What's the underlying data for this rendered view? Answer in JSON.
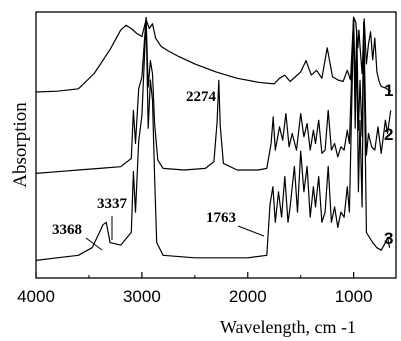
{
  "chart_data": {
    "type": "line",
    "ylabel": "Absorption",
    "xlabel": "Wavelength, cm -1",
    "xlim": [
      4000,
      600
    ],
    "x_reversed": true,
    "x_ticks": [
      4000,
      3000,
      2000,
      1000
    ],
    "x_tick_labels": [
      "4000",
      "3000",
      "2000",
      "1000"
    ],
    "grid": false,
    "legend": "none",
    "series": [
      {
        "name": "1",
        "points": [
          [
            4000,
            0.05
          ],
          [
            3800,
            0.06
          ],
          [
            3600,
            0.09
          ],
          [
            3450,
            0.28
          ],
          [
            3300,
            0.58
          ],
          [
            3200,
            0.82
          ],
          [
            3150,
            0.88
          ],
          [
            3100,
            0.84
          ],
          [
            3050,
            0.78
          ],
          [
            3000,
            0.74
          ],
          [
            2960,
            0.95
          ],
          [
            2930,
            0.84
          ],
          [
            2900,
            0.9
          ],
          [
            2870,
            0.72
          ],
          [
            2820,
            0.62
          ],
          [
            2750,
            0.56
          ],
          [
            2650,
            0.49
          ],
          [
            2500,
            0.4
          ],
          [
            2300,
            0.3
          ],
          [
            2100,
            0.22
          ],
          [
            1900,
            0.17
          ],
          [
            1750,
            0.15
          ],
          [
            1700,
            0.22
          ],
          [
            1650,
            0.26
          ],
          [
            1600,
            0.18
          ],
          [
            1500,
            0.3
          ],
          [
            1450,
            0.44
          ],
          [
            1400,
            0.26
          ],
          [
            1350,
            0.32
          ],
          [
            1300,
            0.22
          ],
          [
            1250,
            0.6
          ],
          [
            1200,
            0.24
          ],
          [
            1150,
            0.2
          ],
          [
            1100,
            0.18
          ],
          [
            1060,
            0.32
          ],
          [
            1030,
            0.2
          ],
          [
            1000,
            0.98
          ],
          [
            980,
            0.92
          ],
          [
            960,
            0.6
          ],
          [
            950,
            0.82
          ],
          [
            940,
            0.62
          ],
          [
            920,
            0.28
          ],
          [
            900,
            0.96
          ],
          [
            880,
            0.4
          ],
          [
            860,
            0.65
          ],
          [
            840,
            0.8
          ],
          [
            820,
            0.45
          ],
          [
            800,
            0.72
          ],
          [
            780,
            0.3
          ],
          [
            760,
            0.18
          ],
          [
            740,
            0.12
          ],
          [
            700,
            0.1
          ],
          [
            650,
            0.06
          ]
        ]
      },
      {
        "name": "2",
        "points": [
          [
            4000,
            0.04
          ],
          [
            3800,
            0.05
          ],
          [
            3600,
            0.06
          ],
          [
            3400,
            0.07
          ],
          [
            3200,
            0.08
          ],
          [
            3100,
            0.13
          ],
          [
            3080,
            0.42
          ],
          [
            3060,
            0.22
          ],
          [
            3030,
            0.55
          ],
          [
            3000,
            0.62
          ],
          [
            2960,
            0.98
          ],
          [
            2940,
            0.56
          ],
          [
            2920,
            0.72
          ],
          [
            2900,
            0.64
          ],
          [
            2880,
            0.34
          ],
          [
            2850,
            0.12
          ],
          [
            2800,
            0.07
          ],
          [
            2600,
            0.06
          ],
          [
            2400,
            0.07
          ],
          [
            2320,
            0.11
          ],
          [
            2290,
            0.35
          ],
          [
            2274,
            0.6
          ],
          [
            2260,
            0.33
          ],
          [
            2230,
            0.1
          ],
          [
            2100,
            0.06
          ],
          [
            1900,
            0.06
          ],
          [
            1820,
            0.07
          ],
          [
            1780,
            0.22
          ],
          [
            1760,
            0.38
          ],
          [
            1740,
            0.18
          ],
          [
            1700,
            0.32
          ],
          [
            1670,
            0.24
          ],
          [
            1640,
            0.4
          ],
          [
            1610,
            0.2
          ],
          [
            1580,
            0.28
          ],
          [
            1540,
            0.18
          ],
          [
            1500,
            0.4
          ],
          [
            1470,
            0.26
          ],
          [
            1440,
            0.34
          ],
          [
            1410,
            0.18
          ],
          [
            1380,
            0.3
          ],
          [
            1360,
            0.22
          ],
          [
            1330,
            0.36
          ],
          [
            1300,
            0.16
          ],
          [
            1270,
            0.18
          ],
          [
            1240,
            0.42
          ],
          [
            1210,
            0.18
          ],
          [
            1180,
            0.22
          ],
          [
            1150,
            0.14
          ],
          [
            1120,
            0.2
          ],
          [
            1090,
            0.18
          ],
          [
            1060,
            0.3
          ],
          [
            1040,
            0.22
          ],
          [
            1000,
            0.98
          ],
          [
            985,
            0.55
          ],
          [
            970,
            0.9
          ],
          [
            955,
            0.3
          ],
          [
            940,
            0.6
          ],
          [
            920,
            0.26
          ],
          [
            905,
            0.95
          ],
          [
            880,
            0.15
          ],
          [
            860,
            0.28
          ],
          [
            830,
            0.2
          ],
          [
            800,
            0.18
          ],
          [
            770,
            0.32
          ],
          [
            740,
            0.16
          ],
          [
            700,
            0.36
          ],
          [
            680,
            0.28
          ],
          [
            650,
            0.42
          ]
        ]
      },
      {
        "name": "3",
        "points": [
          [
            4000,
            0.03
          ],
          [
            3800,
            0.04
          ],
          [
            3600,
            0.05
          ],
          [
            3470,
            0.08
          ],
          [
            3400,
            0.14
          ],
          [
            3368,
            0.17
          ],
          [
            3337,
            0.18
          ],
          [
            3300,
            0.1
          ],
          [
            3200,
            0.09
          ],
          [
            3100,
            0.14
          ],
          [
            3080,
            0.38
          ],
          [
            3060,
            0.22
          ],
          [
            3030,
            0.5
          ],
          [
            3000,
            0.6
          ],
          [
            2960,
            0.98
          ],
          [
            2940,
            0.55
          ],
          [
            2920,
            0.74
          ],
          [
            2900,
            0.66
          ],
          [
            2880,
            0.36
          ],
          [
            2860,
            0.1
          ],
          [
            2800,
            0.05
          ],
          [
            2500,
            0.04
          ],
          [
            2000,
            0.04
          ],
          [
            1820,
            0.05
          ],
          [
            1790,
            0.25
          ],
          [
            1763,
            0.32
          ],
          [
            1740,
            0.18
          ],
          [
            1710,
            0.3
          ],
          [
            1680,
            0.2
          ],
          [
            1650,
            0.36
          ],
          [
            1620,
            0.18
          ],
          [
            1600,
            0.24
          ],
          [
            1560,
            0.4
          ],
          [
            1530,
            0.22
          ],
          [
            1500,
            0.46
          ],
          [
            1470,
            0.3
          ],
          [
            1440,
            0.4
          ],
          [
            1410,
            0.2
          ],
          [
            1380,
            0.32
          ],
          [
            1360,
            0.24
          ],
          [
            1330,
            0.36
          ],
          [
            1300,
            0.18
          ],
          [
            1270,
            0.22
          ],
          [
            1240,
            0.4
          ],
          [
            1210,
            0.18
          ],
          [
            1180,
            0.24
          ],
          [
            1150,
            0.16
          ],
          [
            1120,
            0.22
          ],
          [
            1090,
            0.2
          ],
          [
            1060,
            0.32
          ],
          [
            1040,
            0.22
          ],
          [
            1000,
            0.98
          ],
          [
            985,
            0.55
          ],
          [
            970,
            0.88
          ],
          [
            955,
            0.3
          ],
          [
            940,
            0.58
          ],
          [
            920,
            0.24
          ],
          [
            905,
            0.95
          ],
          [
            880,
            0.14
          ],
          [
            850,
            0.12
          ],
          [
            820,
            0.1
          ],
          [
            780,
            0.08
          ],
          [
            740,
            0.07
          ],
          [
            700,
            0.1
          ],
          [
            680,
            0.12
          ],
          [
            660,
            0.08
          ]
        ]
      }
    ],
    "annotations": [
      {
        "text": "2274",
        "x": 2274,
        "series": "2"
      },
      {
        "text": "3337",
        "x": 3337,
        "series": "3"
      },
      {
        "text": "3368",
        "x": 3368,
        "series": "3"
      },
      {
        "text": "1763",
        "x": 1763,
        "series": "3"
      }
    ],
    "series_labels": [
      "1",
      "2",
      "3"
    ]
  }
}
